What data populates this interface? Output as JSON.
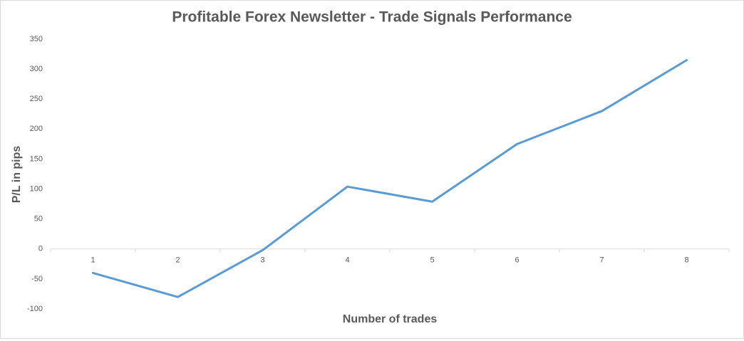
{
  "chart_data": {
    "type": "line",
    "title": "Profitable Forex Newsletter - Trade Signals Performance",
    "x_label": "Number of trades",
    "y_label": "P/L in pips",
    "categories": [
      "1",
      "2",
      "3",
      "4",
      "5",
      "6",
      "7",
      "8"
    ],
    "values": [
      -40,
      -80,
      -2,
      104,
      79,
      175,
      230,
      315
    ],
    "color": "#5b9bd5",
    "ylim": [
      -100,
      350
    ],
    "yticks": [
      -100,
      -50,
      0,
      50,
      100,
      150,
      200,
      250,
      300,
      350
    ],
    "grid": false
  }
}
